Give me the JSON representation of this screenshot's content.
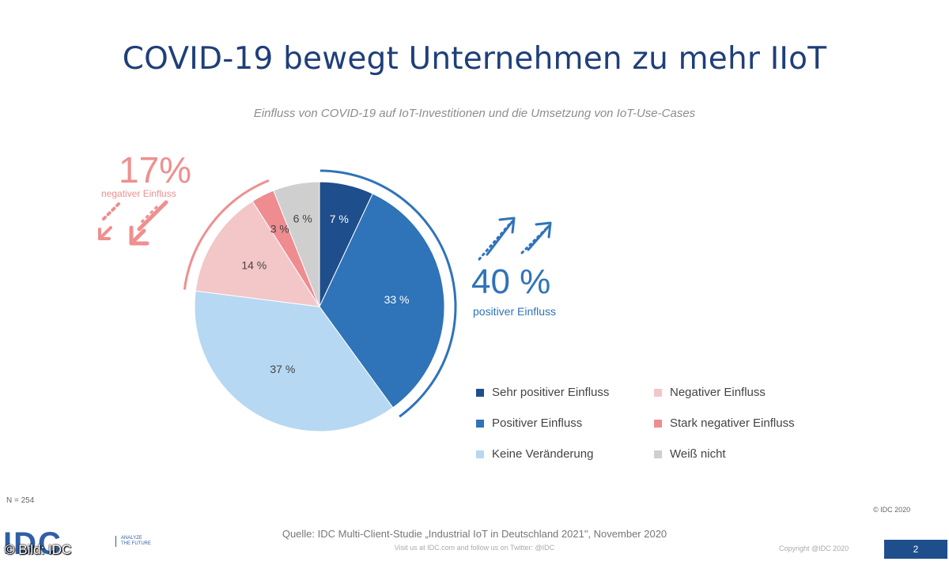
{
  "chart_data": {
    "type": "pie",
    "title": "COVID-19 bewegt Unternehmen zu mehr IIoT",
    "subtitle": "Einfluss von COVID-19 auf IoT-Investitionen und die Umsetzung von IoT-Use-Cases",
    "slices": [
      {
        "name": "Sehr positiver Einfluss",
        "value": 7,
        "label": "7 %",
        "color": "#1f4e8c"
      },
      {
        "name": "Positiver Einfluss",
        "value": 33,
        "label": "33 %",
        "color": "#2f73b9"
      },
      {
        "name": "Keine Veränderung",
        "value": 37,
        "label": "37 %",
        "color": "#b6d8f2"
      },
      {
        "name": "Negativer Einfluss",
        "value": 14,
        "label": "14 %",
        "color": "#f3c6c8"
      },
      {
        "name": "Stark negativer Einfluss",
        "value": 3,
        "label": "3 %",
        "color": "#ee8c90"
      },
      {
        "name": "Weiß nicht",
        "value": 6,
        "label": "6 %",
        "color": "#cfcfcf"
      }
    ],
    "callouts": {
      "negative": {
        "value": "17%",
        "label": "negativer Einfluss",
        "color": "#ef8f8f"
      },
      "positive": {
        "value": "40 %",
        "label": "positiver Einfluss",
        "color": "#2f73b9"
      }
    },
    "legend_placement": "bottom-right"
  },
  "footer": {
    "n": "N = 254",
    "copyright_small": "© IDC 2020",
    "source": "Quelle: IDC Multi-Client-Studie „Industrial IoT in Deutschland 2021\", November 2020",
    "visit": "Visit us at IDC.com and follow us on Twitter: @IDC",
    "copyright": "Copyright @IDC 2020",
    "page": "2",
    "logo": "IDC",
    "tagline": "ANALYZE THE FUTURE",
    "watermark": "© Bild: IDC"
  }
}
